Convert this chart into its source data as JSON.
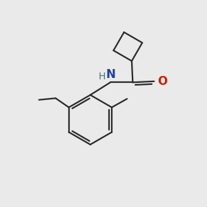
{
  "background_color": "#eaeaea",
  "bond_color": "#2a2a2a",
  "atom_colors": {
    "N": "#2040a0",
    "O": "#cc2000",
    "H": "#507070",
    "C": "#2a2a2a"
  },
  "figsize": [
    3.0,
    3.0
  ],
  "dpi": 100
}
